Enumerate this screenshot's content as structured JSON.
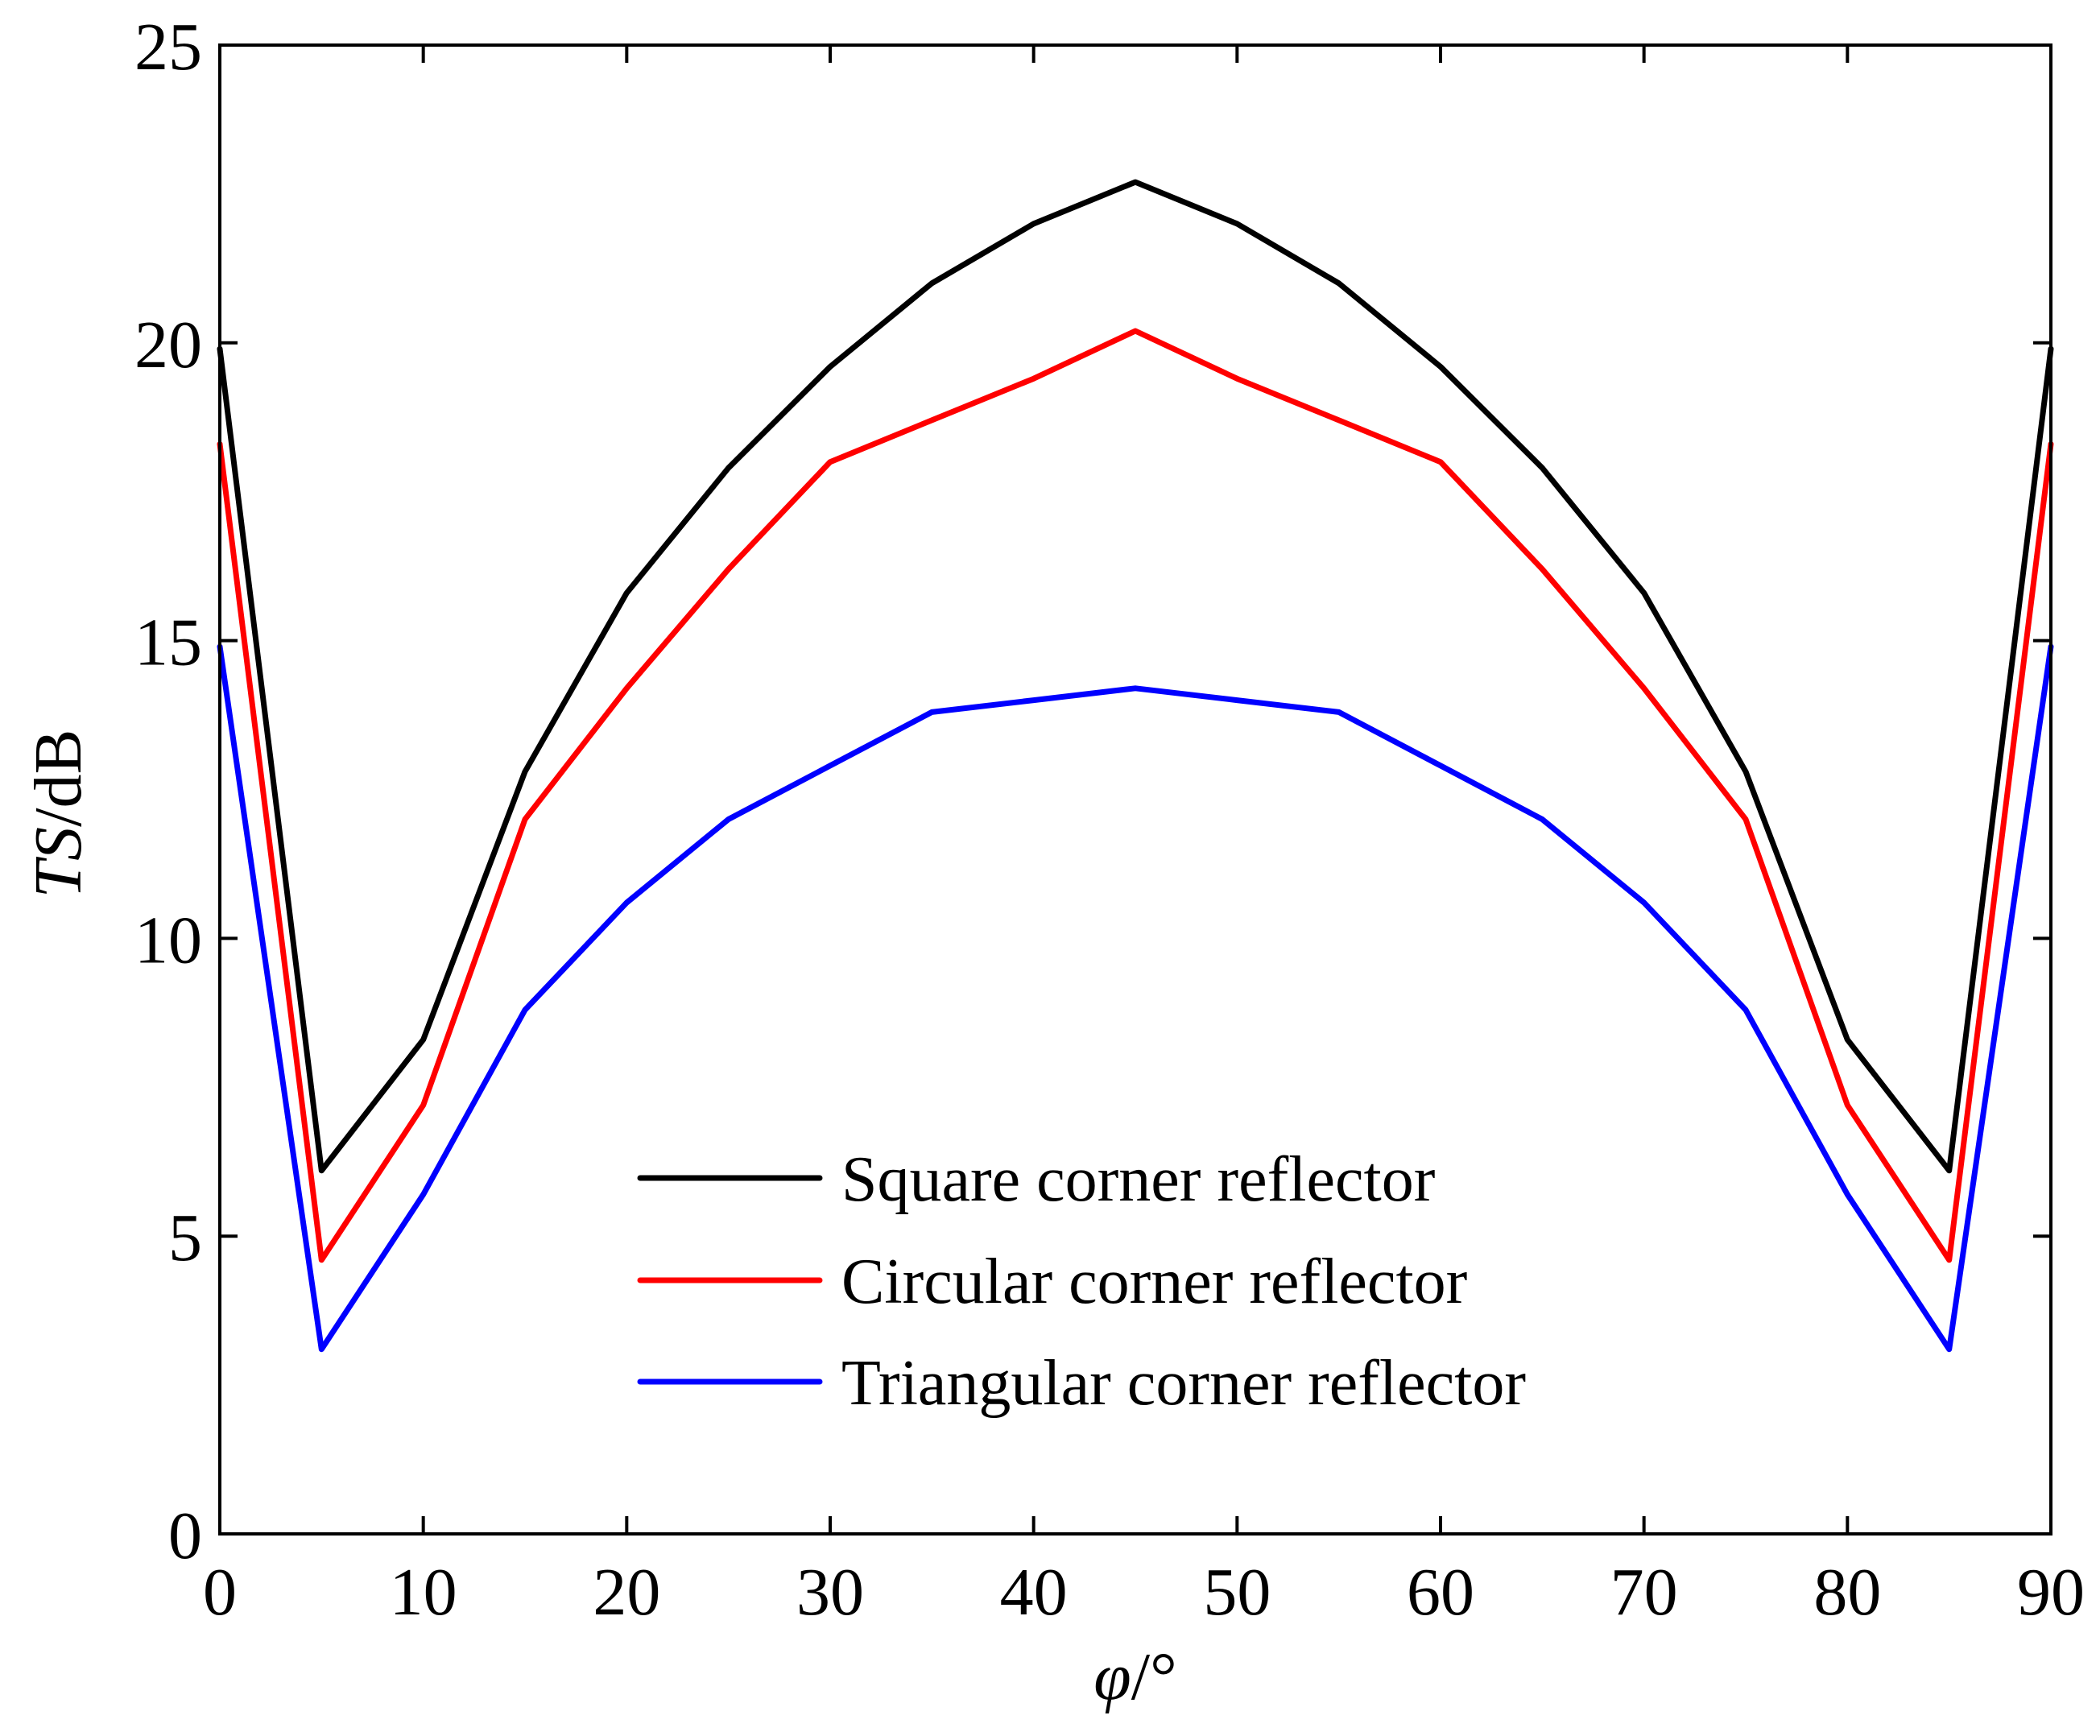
{
  "chart_data": {
    "type": "line",
    "title": "",
    "xlabel": {
      "var": "φ",
      "unit": "/°"
    },
    "ylabel": {
      "var": "TS",
      "unit": "/dB"
    },
    "x": [
      0,
      5,
      10,
      15,
      20,
      25,
      30,
      35,
      40,
      45,
      50,
      55,
      60,
      65,
      70,
      75,
      80,
      85,
      90
    ],
    "xlim": [
      0,
      90
    ],
    "ylim": [
      0,
      25
    ],
    "xticks": [
      0,
      10,
      20,
      30,
      40,
      50,
      60,
      70,
      80,
      90
    ],
    "yticks": [
      0,
      5,
      10,
      15,
      20,
      25
    ],
    "grid": false,
    "legend_position": "bottom-center",
    "series": [
      {
        "name": "Square corner reflector",
        "color": "#000000",
        "values": [
          19.9,
          6.1,
          8.3,
          12.8,
          15.8,
          17.9,
          19.6,
          21.0,
          22.0,
          22.7,
          22.0,
          21.0,
          19.6,
          17.9,
          15.8,
          12.8,
          8.3,
          6.1,
          19.9
        ]
      },
      {
        "name": "Circular corner reflector",
        "color": "#ff0000",
        "values": [
          18.3,
          4.6,
          7.2,
          12.0,
          14.2,
          16.2,
          18.0,
          18.7,
          19.4,
          20.2,
          19.4,
          18.7,
          18.0,
          16.2,
          14.2,
          12.0,
          7.2,
          4.6,
          18.3
        ]
      },
      {
        "name": "Triangular corner reflector",
        "color": "#0000ff",
        "values": [
          14.9,
          3.1,
          5.7,
          8.8,
          10.6,
          12.0,
          12.9,
          13.8,
          14.0,
          14.2,
          14.0,
          13.8,
          12.9,
          12.0,
          10.6,
          8.8,
          5.7,
          3.1,
          14.9
        ]
      }
    ]
  }
}
